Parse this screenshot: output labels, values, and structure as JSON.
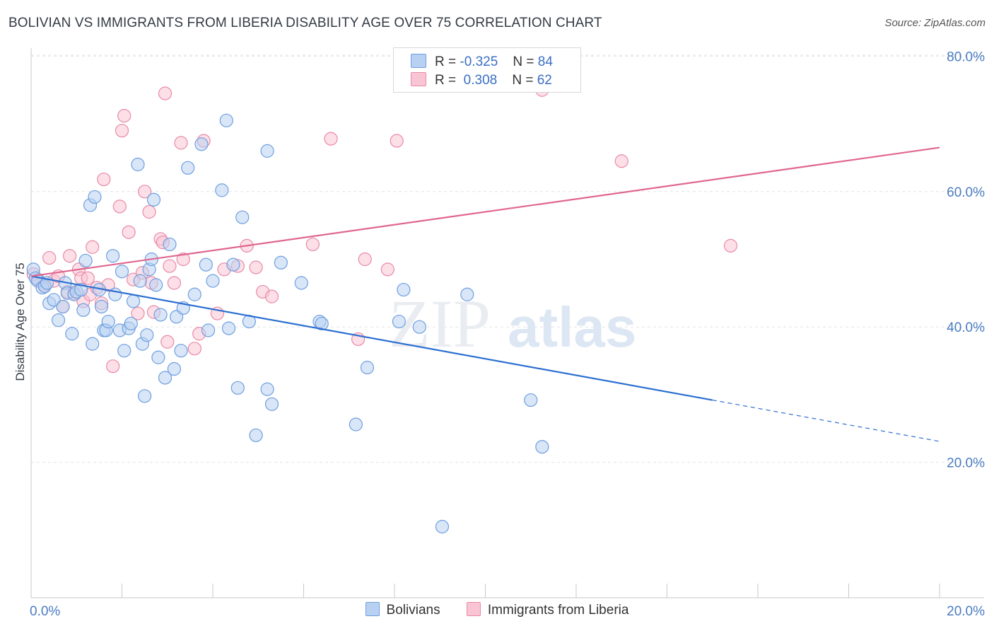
{
  "title": "BOLIVIAN VS IMMIGRANTS FROM LIBERIA DISABILITY AGE OVER 75 CORRELATION CHART",
  "source": "Source: ZipAtlas.com",
  "colors": {
    "blue_fill": "#b8d1f3",
    "blue_stroke": "#6f9fde",
    "blue_line": "#2d6fd0",
    "pink_fill": "#f9c4d3",
    "pink_stroke": "#e88aa8",
    "pink_line": "#e06690",
    "grid": "#e3e3e3",
    "axis_text": "#4a7cc0"
  },
  "watermark": {
    "zip": "ZIP",
    "atlas": "atlas"
  },
  "legend": {
    "rows": [
      {
        "r_label": "R =",
        "r_value": "-0.325",
        "n_label": "N =",
        "n_value": "84"
      },
      {
        "r_label": "R =",
        "r_value": " 0.308",
        "n_label": "N =",
        "n_value": "62"
      }
    ]
  },
  "bottom_legend": [
    "Bolivians",
    "Immigrants from Liberia"
  ],
  "chart_data": {
    "type": "scatter",
    "title": "BOLIVIAN VS IMMIGRANTS FROM LIBERIA DISABILITY AGE OVER 75 CORRELATION CHART",
    "xlabel": "",
    "ylabel": "Disability Age Over 75",
    "xlim": [
      0,
      20
    ],
    "ylim": [
      0,
      85
    ],
    "x_tick_labels": [
      "0.0%",
      "20.0%"
    ],
    "y_ticks": [
      20,
      40,
      60,
      80
    ],
    "y_tick_labels": [
      "20.0%",
      "40.0%",
      "60.0%",
      "80.0%"
    ],
    "grid": true,
    "legend_position": "top-center",
    "series": [
      {
        "name": "Bolivians",
        "color": "#b8d1f3",
        "trend": {
          "x": [
            0,
            15
          ],
          "y": [
            47.5,
            29.2
          ],
          "dashed_to": [
            20,
            23.1
          ]
        },
        "points": [
          [
            0.05,
            48.5
          ],
          [
            0.1,
            47.2
          ],
          [
            0.15,
            46.8
          ],
          [
            0.25,
            45.8
          ],
          [
            0.3,
            46.0
          ],
          [
            0.35,
            46.5
          ],
          [
            0.4,
            43.5
          ],
          [
            0.5,
            44.0
          ],
          [
            0.6,
            41.0
          ],
          [
            0.7,
            43.0
          ],
          [
            0.75,
            46.5
          ],
          [
            0.8,
            45.0
          ],
          [
            0.9,
            39.0
          ],
          [
            0.95,
            44.8
          ],
          [
            1.0,
            45.2
          ],
          [
            1.1,
            45.5
          ],
          [
            1.15,
            42.5
          ],
          [
            1.2,
            49.8
          ],
          [
            1.3,
            58.0
          ],
          [
            1.35,
            37.5
          ],
          [
            1.4,
            59.2
          ],
          [
            1.5,
            45.5
          ],
          [
            1.55,
            43.0
          ],
          [
            1.6,
            39.5
          ],
          [
            1.65,
            39.5
          ],
          [
            1.7,
            40.8
          ],
          [
            1.8,
            50.5
          ],
          [
            1.85,
            44.8
          ],
          [
            1.95,
            39.5
          ],
          [
            2.0,
            48.2
          ],
          [
            2.05,
            36.5
          ],
          [
            2.15,
            39.8
          ],
          [
            2.2,
            40.5
          ],
          [
            2.25,
            43.8
          ],
          [
            2.35,
            64.0
          ],
          [
            2.4,
            46.8
          ],
          [
            2.45,
            37.5
          ],
          [
            2.5,
            29.8
          ],
          [
            2.55,
            38.8
          ],
          [
            2.6,
            48.5
          ],
          [
            2.65,
            50.0
          ],
          [
            2.7,
            58.8
          ],
          [
            2.75,
            46.2
          ],
          [
            2.8,
            35.5
          ],
          [
            2.85,
            41.8
          ],
          [
            2.95,
            32.5
          ],
          [
            3.05,
            52.2
          ],
          [
            3.15,
            33.8
          ],
          [
            3.2,
            41.5
          ],
          [
            3.3,
            36.5
          ],
          [
            3.35,
            42.8
          ],
          [
            3.45,
            63.5
          ],
          [
            3.6,
            44.8
          ],
          [
            3.75,
            67.0
          ],
          [
            3.85,
            49.2
          ],
          [
            3.9,
            39.5
          ],
          [
            4.0,
            46.8
          ],
          [
            4.2,
            60.2
          ],
          [
            4.3,
            70.5
          ],
          [
            4.35,
            39.8
          ],
          [
            4.45,
            49.2
          ],
          [
            4.55,
            31.0
          ],
          [
            4.65,
            56.2
          ],
          [
            4.8,
            40.8
          ],
          [
            4.95,
            24.0
          ],
          [
            5.2,
            66.0
          ],
          [
            5.2,
            30.8
          ],
          [
            5.3,
            28.6
          ],
          [
            5.5,
            49.5
          ],
          [
            5.95,
            46.5
          ],
          [
            6.35,
            40.8
          ],
          [
            6.4,
            40.5
          ],
          [
            7.15,
            25.6
          ],
          [
            7.4,
            34.0
          ],
          [
            8.1,
            40.8
          ],
          [
            8.2,
            45.5
          ],
          [
            8.55,
            40.0
          ],
          [
            9.05,
            10.5
          ],
          [
            9.6,
            44.8
          ],
          [
            11.0,
            29.2
          ],
          [
            11.25,
            22.3
          ]
        ]
      },
      {
        "name": "Immigrants from Liberia",
        "color": "#f9c4d3",
        "trend": {
          "x": [
            0,
            20
          ],
          "y": [
            47.5,
            66.5
          ]
        },
        "points": [
          [
            0.05,
            47.8
          ],
          [
            0.15,
            47.0
          ],
          [
            0.3,
            46.2
          ],
          [
            0.4,
            50.2
          ],
          [
            0.5,
            46.8
          ],
          [
            0.6,
            47.5
          ],
          [
            0.7,
            43.0
          ],
          [
            0.8,
            45.2
          ],
          [
            0.85,
            50.5
          ],
          [
            0.95,
            45.0
          ],
          [
            1.05,
            48.5
          ],
          [
            1.1,
            47.2
          ],
          [
            1.15,
            43.8
          ],
          [
            1.25,
            47.2
          ],
          [
            1.3,
            44.8
          ],
          [
            1.35,
            51.8
          ],
          [
            1.45,
            45.8
          ],
          [
            1.55,
            43.5
          ],
          [
            1.6,
            61.8
          ],
          [
            1.7,
            46.2
          ],
          [
            1.8,
            34.2
          ],
          [
            1.95,
            57.8
          ],
          [
            2.0,
            69.0
          ],
          [
            2.05,
            71.2
          ],
          [
            2.15,
            54.0
          ],
          [
            2.25,
            47.0
          ],
          [
            2.35,
            42.0
          ],
          [
            2.45,
            48.0
          ],
          [
            2.5,
            60.0
          ],
          [
            2.6,
            57.0
          ],
          [
            2.65,
            46.5
          ],
          [
            2.7,
            42.2
          ],
          [
            2.85,
            53.0
          ],
          [
            2.9,
            52.5
          ],
          [
            2.95,
            74.5
          ],
          [
            3.0,
            37.8
          ],
          [
            3.05,
            49.0
          ],
          [
            3.15,
            46.5
          ],
          [
            3.3,
            67.2
          ],
          [
            3.35,
            50.0
          ],
          [
            3.6,
            36.8
          ],
          [
            3.7,
            39.0
          ],
          [
            3.8,
            67.5
          ],
          [
            4.1,
            42.0
          ],
          [
            4.25,
            48.5
          ],
          [
            4.55,
            49.0
          ],
          [
            4.75,
            52.0
          ],
          [
            4.95,
            48.8
          ],
          [
            5.1,
            45.2
          ],
          [
            5.3,
            44.5
          ],
          [
            6.2,
            52.2
          ],
          [
            6.6,
            67.8
          ],
          [
            7.2,
            38.2
          ],
          [
            7.35,
            50.0
          ],
          [
            7.85,
            48.5
          ],
          [
            8.05,
            67.5
          ],
          [
            11.25,
            75.0
          ],
          [
            13.0,
            64.5
          ],
          [
            15.4,
            52.0
          ]
        ]
      }
    ]
  }
}
